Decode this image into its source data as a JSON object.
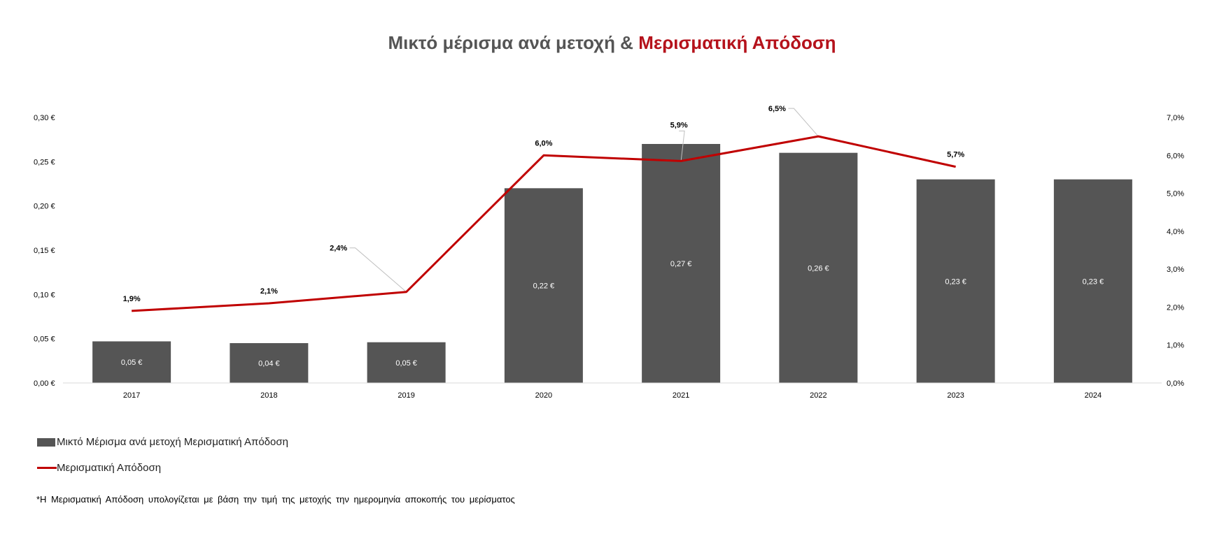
{
  "title": {
    "part1": "Μικτό μέρισμα ανά μετοχή &",
    "part2": "Μερισματική Απόδοση"
  },
  "colors": {
    "bar": "#555555",
    "line": "#c00000",
    "title_accent": "#b5121b"
  },
  "chart_data": {
    "type": "bar+line",
    "categories": [
      "2017",
      "2018",
      "2019",
      "2020",
      "2021",
      "2022",
      "2023",
      "2024"
    ],
    "series": [
      {
        "name": "Μικτό Μέρισμα ανά μετοχή Μερισματική Απόδοση",
        "type": "bar",
        "axis": "left",
        "values": [
          0.047,
          0.045,
          0.046,
          0.22,
          0.27,
          0.26,
          0.23,
          0.23
        ],
        "labels": [
          "0,05 €",
          "0,04 €",
          "0,05 €",
          "0,22 €",
          "0,27 €",
          "0,26 €",
          "0,23 €",
          "0,23 €"
        ]
      },
      {
        "name": "Μερισματική Απόδοση",
        "type": "line",
        "axis": "right",
        "values": [
          1.9,
          2.1,
          2.4,
          6.0,
          5.85,
          6.5,
          5.7,
          null
        ],
        "labels": [
          "1,9%",
          "2,1%",
          "2,4%",
          "6,0%",
          "5,9%",
          "6,5%",
          "5,7%",
          null
        ]
      }
    ],
    "y_left": {
      "lim": [
        0,
        0.3
      ],
      "ticks": [
        "0,00 €",
        "0,05 €",
        "0,10 €",
        "0,15 €",
        "0,20 €",
        "0,25 €",
        "0,30 €"
      ]
    },
    "y_right": {
      "lim": [
        0,
        7
      ],
      "ticks": [
        "0,0%",
        "1,0%",
        "2,0%",
        "3,0%",
        "4,0%",
        "5,0%",
        "6,0%",
        "7,0%"
      ]
    },
    "grid": false,
    "legend_position": "bottom-left"
  },
  "legend": {
    "bar_label": "Μικτό Μέρισμα ανά μετοχή Μερισματική Απόδοση",
    "line_label": "Μερισματική Απόδοση"
  },
  "footnote": "*Η Μερισματική Απόδοση υπολογίζεται με βάση την τιμή της μετοχής την ημερομηνία αποκοπής του μερίσματος"
}
